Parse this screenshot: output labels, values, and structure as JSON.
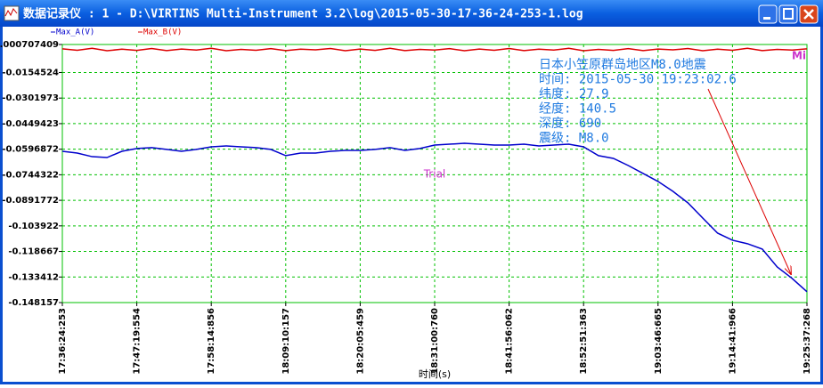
{
  "window": {
    "title": "数据记录仪 : 1 - D:\\VIRTINS Multi-Instrument 3.2\\log\\2015-05-30-17-36-24-253-1.log"
  },
  "chart_data": {
    "type": "line",
    "xlabel": "时间(s)",
    "categories": [
      "17:36:24:253",
      null,
      null,
      null,
      null,
      "17:47:19:554",
      null,
      null,
      null,
      null,
      "17:58:14:856",
      null,
      null,
      null,
      null,
      "18:09:10:157",
      null,
      null,
      null,
      null,
      "18:20:05:459",
      null,
      null,
      null,
      null,
      "18:31:00:760",
      null,
      null,
      null,
      null,
      "18:41:56:062",
      null,
      null,
      null,
      null,
      "18:52:51:363",
      null,
      null,
      null,
      null,
      "19:03:46:665",
      null,
      null,
      null,
      null,
      "19:14:41:966",
      null,
      null,
      null,
      null,
      "19:25:37:268"
    ],
    "series": [
      {
        "name": "Max_A(V)",
        "color": "#0000cc",
        "values": [
          -0.0609,
          -0.0619,
          -0.064,
          -0.0645,
          -0.0609,
          -0.0593,
          -0.0588,
          -0.0598,
          -0.0609,
          -0.0598,
          -0.0583,
          -0.0578,
          -0.0583,
          -0.0588,
          -0.0598,
          -0.0634,
          -0.0619,
          -0.0619,
          -0.0609,
          -0.0604,
          -0.0604,
          -0.0598,
          -0.0588,
          -0.0604,
          -0.0593,
          -0.0573,
          -0.0568,
          -0.0563,
          -0.0568,
          -0.0573,
          -0.0573,
          -0.0568,
          -0.0578,
          -0.0573,
          -0.0568,
          -0.0583,
          -0.0634,
          -0.065,
          -0.0691,
          -0.0737,
          -0.0783,
          -0.084,
          -0.0906,
          -0.0994,
          -0.1081,
          -0.1122,
          -0.1142,
          -0.1173,
          -0.1276,
          -0.1342,
          -0.1419
        ]
      },
      {
        "name": "Max_B(V)",
        "color": "#dd0000",
        "values": [
          -0.0018,
          -0.0026,
          -0.0015,
          -0.0029,
          -0.002,
          -0.0027,
          -0.0016,
          -0.0028,
          -0.0019,
          -0.0025,
          -0.0015,
          -0.0029,
          -0.0021,
          -0.0026,
          -0.0017,
          -0.0028,
          -0.002,
          -0.0024,
          -0.0016,
          -0.0029,
          -0.0019,
          -0.0027,
          -0.0015,
          -0.0028,
          -0.0021,
          -0.0025,
          -0.0017,
          -0.0029,
          -0.0019,
          -0.0026,
          -0.0016,
          -0.0028,
          -0.002,
          -0.0025,
          -0.0015,
          -0.0029,
          -0.0021,
          -0.0027,
          -0.0017,
          -0.0028,
          -0.0019,
          -0.0024,
          -0.0016,
          -0.0029,
          -0.002,
          -0.0026,
          -0.0015,
          -0.0028,
          -0.0021,
          -0.0025,
          -0.0018
        ]
      }
    ],
    "ylim": [
      -0.148157,
      0.000707409
    ],
    "yticks": [
      0.000707409,
      -0.0154524,
      -0.0301973,
      -0.0449423,
      -0.0596872,
      -0.0744322,
      -0.0891772,
      -0.103922,
      -0.118667,
      -0.133412,
      -0.148157
    ],
    "grid": true,
    "watermark": "Trial",
    "corner_label": "Mi",
    "info_box": [
      "日本小笠原群岛地区M8.0地震",
      "时间: 2015-05-30 19:23:02.6",
      "纬度: 27.9",
      "经度: 140.5",
      "深度: 690",
      "震级: M8.0"
    ]
  }
}
